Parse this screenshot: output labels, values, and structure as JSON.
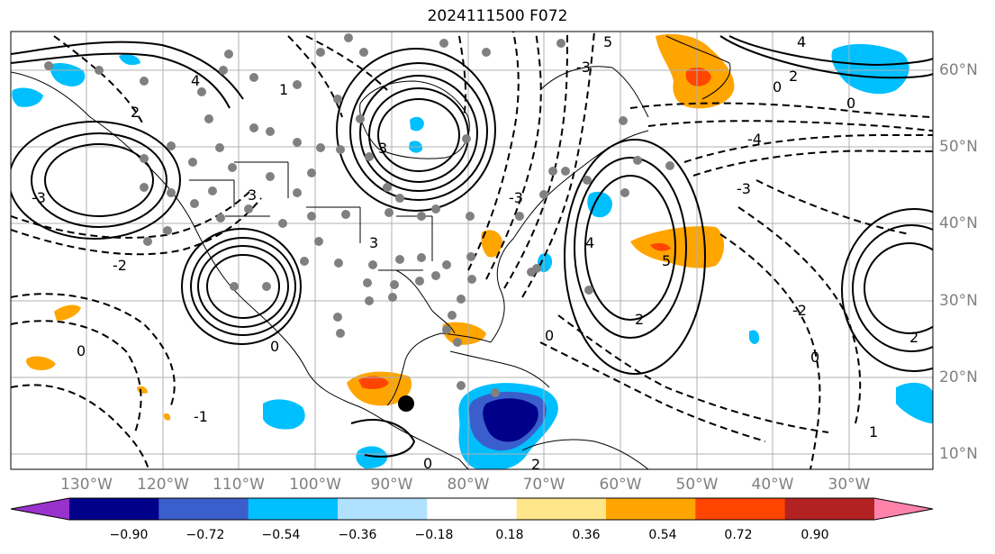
{
  "title": "2024111500 F072",
  "axes": {
    "lon_labels": [
      "130°W",
      "120°W",
      "110°W",
      "100°W",
      "90°W",
      "80°W",
      "70°W",
      "60°W",
      "50°W",
      "40°W",
      "30°W"
    ],
    "lat_labels": [
      "60°N",
      "50°N",
      "40°N",
      "30°N",
      "20°N",
      "10°N"
    ]
  },
  "colorbar": {
    "ticks": [
      "−0.90",
      "−0.72",
      "−0.54",
      "−0.36",
      "−0.18",
      "0.18",
      "0.36",
      "0.54",
      "0.72",
      "0.90"
    ],
    "colors": [
      "#9932cc",
      "#00008b",
      "#3a5fcd",
      "#00bfff",
      "#b0e2ff",
      "#ffffff",
      "#ffe68a",
      "#ffa500",
      "#ff4500",
      "#b22222",
      "#ff82ab"
    ]
  },
  "contour_labels": [
    "3",
    "4",
    "2",
    "1",
    "0",
    "5",
    "-3",
    "-2",
    "-4",
    "-1"
  ],
  "marker": "tropical-cyclone-position"
}
